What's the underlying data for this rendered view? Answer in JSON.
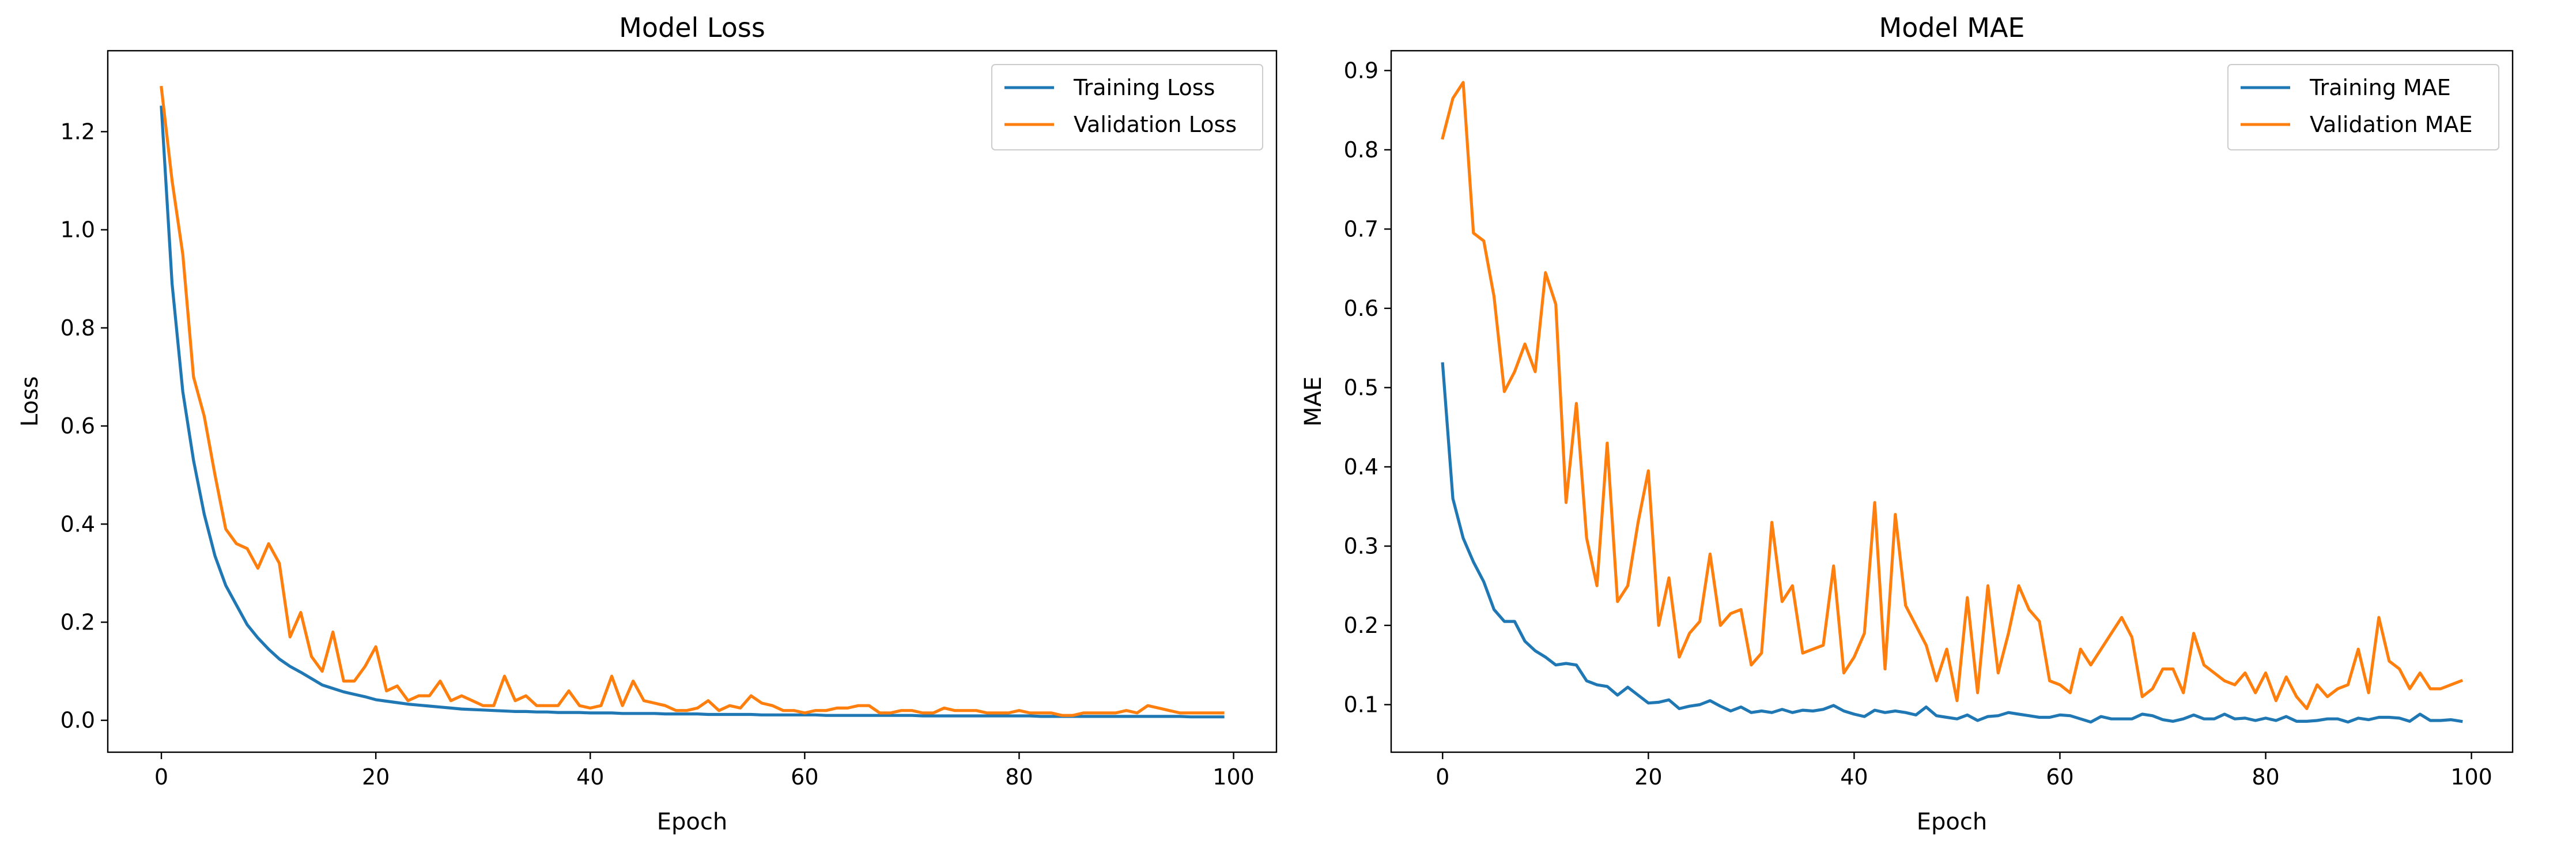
{
  "colors": {
    "training": "#1f77b4",
    "validation": "#ff7f0e",
    "axes": "#000000",
    "background": "#ffffff"
  },
  "chart_data": [
    {
      "type": "line",
      "title": "Model Loss",
      "xlabel": "Epoch",
      "ylabel": "Loss",
      "xlim": [
        -5,
        104
      ],
      "ylim": [
        -0.065,
        1.365
      ],
      "xticks": [
        0,
        20,
        40,
        60,
        80,
        100
      ],
      "xtick_labels": [
        "0",
        "20",
        "40",
        "60",
        "80",
        "100"
      ],
      "yticks": [
        0.0,
        0.2,
        0.4,
        0.6,
        0.8,
        1.0,
        1.2
      ],
      "ytick_labels": [
        "0.0",
        "0.2",
        "0.4",
        "0.6",
        "0.8",
        "1.0",
        "1.2"
      ],
      "grid": false,
      "legend_position": "upper right",
      "series": [
        {
          "name": "Training Loss",
          "color": "#1f77b4",
          "values": [
            1.25,
            0.89,
            0.67,
            0.53,
            0.42,
            0.335,
            0.275,
            0.235,
            0.195,
            0.168,
            0.145,
            0.125,
            0.11,
            0.098,
            0.085,
            0.072,
            0.065,
            0.058,
            0.053,
            0.048,
            0.042,
            0.039,
            0.036,
            0.033,
            0.031,
            0.029,
            0.027,
            0.025,
            0.023,
            0.022,
            0.021,
            0.02,
            0.019,
            0.018,
            0.018,
            0.017,
            0.017,
            0.016,
            0.016,
            0.016,
            0.015,
            0.015,
            0.015,
            0.014,
            0.014,
            0.014,
            0.014,
            0.013,
            0.013,
            0.013,
            0.013,
            0.012,
            0.012,
            0.012,
            0.012,
            0.012,
            0.011,
            0.011,
            0.011,
            0.011,
            0.011,
            0.011,
            0.01,
            0.01,
            0.01,
            0.01,
            0.01,
            0.01,
            0.01,
            0.01,
            0.01,
            0.009,
            0.009,
            0.009,
            0.009,
            0.009,
            0.009,
            0.009,
            0.009,
            0.009,
            0.009,
            0.009,
            0.008,
            0.008,
            0.008,
            0.008,
            0.008,
            0.008,
            0.008,
            0.008,
            0.008,
            0.008,
            0.008,
            0.008,
            0.008,
            0.008,
            0.007,
            0.007,
            0.007,
            0.007
          ]
        },
        {
          "name": "Validation Loss",
          "color": "#ff7f0e",
          "values": [
            1.29,
            1.1,
            0.95,
            0.7,
            0.62,
            0.5,
            0.39,
            0.36,
            0.35,
            0.31,
            0.36,
            0.32,
            0.17,
            0.22,
            0.13,
            0.1,
            0.18,
            0.08,
            0.08,
            0.11,
            0.15,
            0.06,
            0.07,
            0.04,
            0.05,
            0.05,
            0.08,
            0.04,
            0.05,
            0.04,
            0.03,
            0.03,
            0.09,
            0.04,
            0.05,
            0.03,
            0.03,
            0.03,
            0.06,
            0.03,
            0.025,
            0.03,
            0.09,
            0.03,
            0.08,
            0.04,
            0.035,
            0.03,
            0.02,
            0.02,
            0.025,
            0.04,
            0.02,
            0.03,
            0.025,
            0.05,
            0.035,
            0.03,
            0.02,
            0.02,
            0.015,
            0.02,
            0.02,
            0.025,
            0.025,
            0.03,
            0.03,
            0.015,
            0.015,
            0.02,
            0.02,
            0.015,
            0.015,
            0.025,
            0.02,
            0.02,
            0.02,
            0.015,
            0.015,
            0.015,
            0.02,
            0.015,
            0.015,
            0.015,
            0.01,
            0.01,
            0.015,
            0.015,
            0.015,
            0.015,
            0.02,
            0.015,
            0.03,
            0.025,
            0.02,
            0.015,
            0.015,
            0.015,
            0.015,
            0.015
          ]
        }
      ]
    },
    {
      "type": "line",
      "title": "Model MAE",
      "xlabel": "Epoch",
      "ylabel": "MAE",
      "xlim": [
        -5,
        104
      ],
      "ylim": [
        0.04,
        0.925
      ],
      "xticks": [
        0,
        20,
        40,
        60,
        80,
        100
      ],
      "xtick_labels": [
        "0",
        "20",
        "40",
        "60",
        "80",
        "100"
      ],
      "yticks": [
        0.1,
        0.2,
        0.3,
        0.4,
        0.5,
        0.6,
        0.7,
        0.8,
        0.9
      ],
      "ytick_labels": [
        "0.1",
        "0.2",
        "0.3",
        "0.4",
        "0.5",
        "0.6",
        "0.7",
        "0.8",
        "0.9"
      ],
      "grid": false,
      "legend_position": "upper right",
      "series": [
        {
          "name": "Training MAE",
          "color": "#1f77b4",
          "values": [
            0.53,
            0.36,
            0.31,
            0.28,
            0.255,
            0.22,
            0.205,
            0.205,
            0.18,
            0.168,
            0.16,
            0.15,
            0.152,
            0.15,
            0.13,
            0.125,
            0.123,
            0.112,
            0.122,
            0.112,
            0.102,
            0.103,
            0.106,
            0.095,
            0.098,
            0.1,
            0.105,
            0.098,
            0.092,
            0.097,
            0.09,
            0.092,
            0.09,
            0.094,
            0.09,
            0.093,
            0.092,
            0.094,
            0.099,
            0.092,
            0.088,
            0.085,
            0.093,
            0.09,
            0.092,
            0.09,
            0.087,
            0.097,
            0.086,
            0.084,
            0.082,
            0.087,
            0.08,
            0.085,
            0.086,
            0.09,
            0.088,
            0.086,
            0.084,
            0.084,
            0.087,
            0.086,
            0.082,
            0.078,
            0.085,
            0.082,
            0.082,
            0.082,
            0.088,
            0.086,
            0.081,
            0.079,
            0.082,
            0.087,
            0.082,
            0.082,
            0.088,
            0.082,
            0.083,
            0.08,
            0.083,
            0.08,
            0.085,
            0.079,
            0.079,
            0.08,
            0.082,
            0.082,
            0.078,
            0.083,
            0.081,
            0.084,
            0.084,
            0.083,
            0.079,
            0.088,
            0.08,
            0.08,
            0.081,
            0.079
          ]
        },
        {
          "name": "Validation MAE",
          "color": "#ff7f0e",
          "values": [
            0.815,
            0.865,
            0.885,
            0.695,
            0.685,
            0.615,
            0.495,
            0.52,
            0.555,
            0.52,
            0.645,
            0.605,
            0.355,
            0.48,
            0.31,
            0.25,
            0.43,
            0.23,
            0.25,
            0.33,
            0.395,
            0.2,
            0.26,
            0.16,
            0.19,
            0.205,
            0.29,
            0.2,
            0.215,
            0.22,
            0.15,
            0.165,
            0.33,
            0.23,
            0.25,
            0.165,
            0.17,
            0.175,
            0.275,
            0.14,
            0.16,
            0.19,
            0.355,
            0.145,
            0.34,
            0.225,
            0.2,
            0.175,
            0.13,
            0.17,
            0.105,
            0.235,
            0.115,
            0.25,
            0.14,
            0.19,
            0.25,
            0.22,
            0.205,
            0.13,
            0.125,
            0.115,
            0.17,
            0.15,
            0.17,
            0.19,
            0.21,
            0.185,
            0.11,
            0.12,
            0.145,
            0.145,
            0.115,
            0.19,
            0.15,
            0.14,
            0.13,
            0.125,
            0.14,
            0.115,
            0.14,
            0.105,
            0.135,
            0.11,
            0.095,
            0.125,
            0.11,
            0.12,
            0.125,
            0.17,
            0.115,
            0.21,
            0.155,
            0.145,
            0.12,
            0.14,
            0.12,
            0.12,
            0.125,
            0.13
          ]
        }
      ]
    }
  ]
}
